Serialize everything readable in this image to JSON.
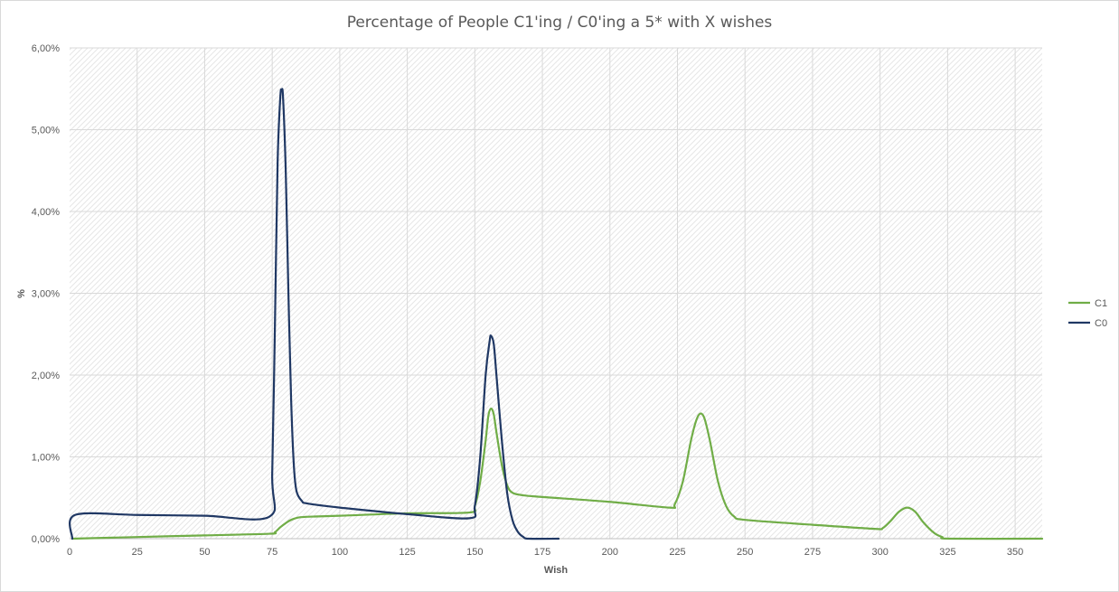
{
  "chart_data": {
    "type": "line",
    "title": "Percentage of People C1'ing / C0'ing a 5* with X wishes",
    "xlabel": "Wish",
    "ylabel": "%",
    "xlim": [
      0,
      360
    ],
    "ylim": [
      0,
      6
    ],
    "x_ticks": [
      0,
      25,
      50,
      75,
      100,
      125,
      150,
      175,
      200,
      225,
      250,
      275,
      300,
      325,
      350
    ],
    "x_tick_labels": [
      "0",
      "25",
      "50",
      "75",
      "100",
      "125",
      "150",
      "175",
      "200",
      "225",
      "250",
      "275",
      "300",
      "325",
      "350"
    ],
    "y_ticks": [
      0,
      1,
      2,
      3,
      4,
      5,
      6
    ],
    "y_tick_labels": [
      "0,00%",
      "1,00%",
      "2,00%",
      "3,00%",
      "4,00%",
      "5,00%",
      "6,00%"
    ],
    "grid": true,
    "legend_position": "right",
    "series": [
      {
        "name": "C1",
        "color": "#70ad47",
        "points": [
          [
            1,
            0.0
          ],
          [
            25,
            0.02
          ],
          [
            50,
            0.04
          ],
          [
            74,
            0.06
          ],
          [
            76,
            0.08
          ],
          [
            78,
            0.14
          ],
          [
            80,
            0.19
          ],
          [
            82,
            0.23
          ],
          [
            85,
            0.26
          ],
          [
            90,
            0.27
          ],
          [
            100,
            0.28
          ],
          [
            125,
            0.31
          ],
          [
            148,
            0.32
          ],
          [
            150,
            0.4
          ],
          [
            152,
            0.7
          ],
          [
            154,
            1.2
          ],
          [
            155,
            1.5
          ],
          [
            156,
            1.59
          ],
          [
            157,
            1.52
          ],
          [
            158,
            1.3
          ],
          [
            160,
            0.9
          ],
          [
            162,
            0.65
          ],
          [
            164,
            0.56
          ],
          [
            168,
            0.53
          ],
          [
            175,
            0.51
          ],
          [
            200,
            0.45
          ],
          [
            222,
            0.38
          ],
          [
            224,
            0.42
          ],
          [
            227,
            0.7
          ],
          [
            230,
            1.2
          ],
          [
            232,
            1.45
          ],
          [
            233.5,
            1.53
          ],
          [
            235,
            1.47
          ],
          [
            237,
            1.2
          ],
          [
            240,
            0.7
          ],
          [
            243,
            0.4
          ],
          [
            246,
            0.27
          ],
          [
            250,
            0.23
          ],
          [
            275,
            0.17
          ],
          [
            298,
            0.12
          ],
          [
            301,
            0.13
          ],
          [
            304,
            0.22
          ],
          [
            307,
            0.33
          ],
          [
            310,
            0.38
          ],
          [
            313,
            0.33
          ],
          [
            316,
            0.2
          ],
          [
            320,
            0.07
          ],
          [
            323,
            0.02
          ],
          [
            326,
            0.0
          ],
          [
            360,
            0.0
          ]
        ]
      },
      {
        "name": "C0",
        "color": "#203864",
        "points": [
          [
            1,
            0.0
          ],
          [
            2,
            0.29
          ],
          [
            25,
            0.29
          ],
          [
            50,
            0.28
          ],
          [
            74,
            0.27
          ],
          [
            75,
            0.8
          ],
          [
            76,
            2.6
          ],
          [
            77,
            4.6
          ],
          [
            78,
            5.4
          ],
          [
            78.5,
            5.48
          ],
          [
            79,
            5.4
          ],
          [
            80,
            4.5
          ],
          [
            81,
            3.0
          ],
          [
            82,
            1.7
          ],
          [
            83,
            0.9
          ],
          [
            84,
            0.58
          ],
          [
            86,
            0.46
          ],
          [
            88,
            0.43
          ],
          [
            100,
            0.38
          ],
          [
            125,
            0.3
          ],
          [
            148,
            0.25
          ],
          [
            150,
            0.4
          ],
          [
            152,
            1.0
          ],
          [
            154,
            2.0
          ],
          [
            155.5,
            2.42
          ],
          [
            156,
            2.48
          ],
          [
            157,
            2.38
          ],
          [
            158,
            2.0
          ],
          [
            160,
            1.2
          ],
          [
            162,
            0.55
          ],
          [
            164,
            0.22
          ],
          [
            166,
            0.08
          ],
          [
            168,
            0.02
          ],
          [
            170,
            0.0
          ],
          [
            181,
            0.0
          ]
        ]
      }
    ]
  }
}
